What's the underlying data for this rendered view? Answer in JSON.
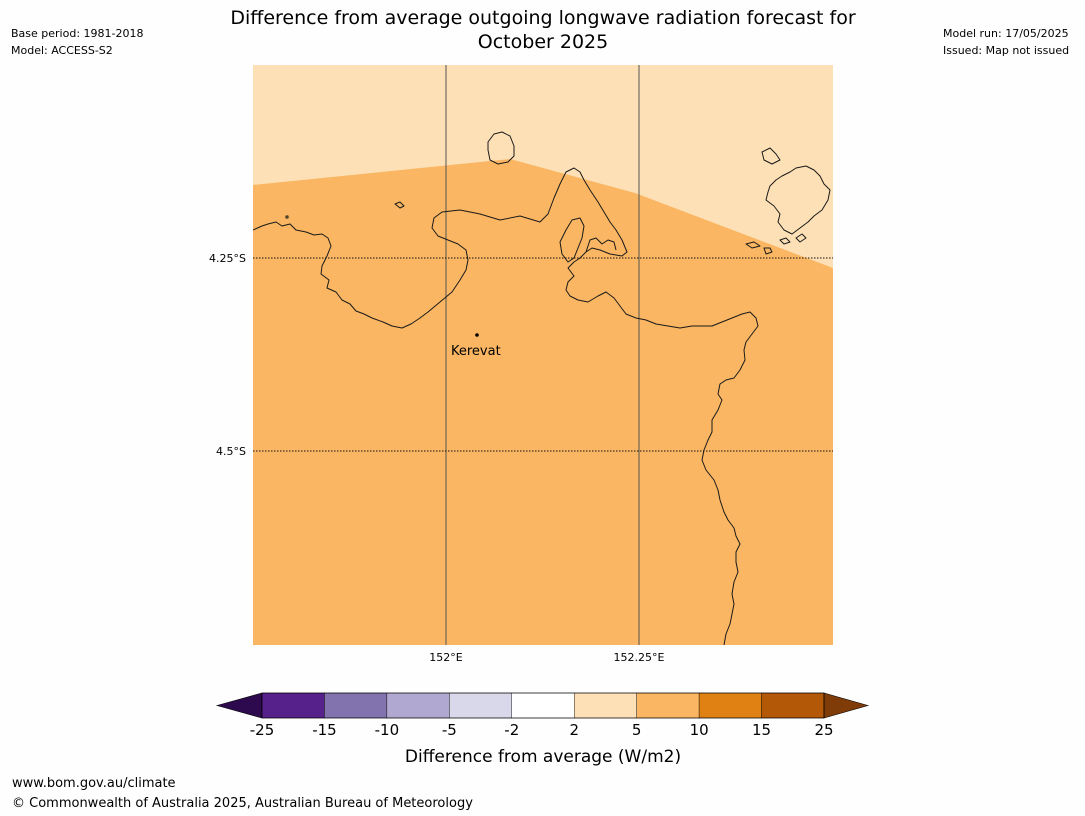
{
  "header": {
    "title_line1": "Difference from average outgoing longwave radiation forecast for",
    "title_line2": "October 2025",
    "base_period": "Base period: 1981-2018",
    "model": "Model: ACCESS-S2",
    "model_run": "Model run: 17/05/2025",
    "issued": "Issued: Map not issued"
  },
  "map": {
    "lat_labels": [
      "4.25°S",
      "4.5°S"
    ],
    "lon_labels": [
      "152°E",
      "152.25°E"
    ],
    "place": "Kerevat",
    "fill_colors": {
      "5 to 10": "#fab662",
      "2 to 5": "#fde0b6"
    },
    "coastline_color": "#1a1a1a"
  },
  "colorbar": {
    "label": "Difference from average (W/m2)",
    "ticks": [
      "-25",
      "-15",
      "-10",
      "-5",
      "-2",
      "2",
      "5",
      "10",
      "15",
      "25"
    ],
    "colors": [
      "#56218a",
      "#8273ae",
      "#b1a8d1",
      "#d8d8ea",
      "#ffffff",
      "#fde0b6",
      "#fab662",
      "#e08213",
      "#b35806"
    ],
    "extend_low_color": "#2d0a4e",
    "extend_high_color": "#7f3b08"
  },
  "footer": {
    "url": "www.bom.gov.au/climate",
    "copyright": "© Commonwealth of Australia 2025, Australian Bureau of Meteorology"
  }
}
